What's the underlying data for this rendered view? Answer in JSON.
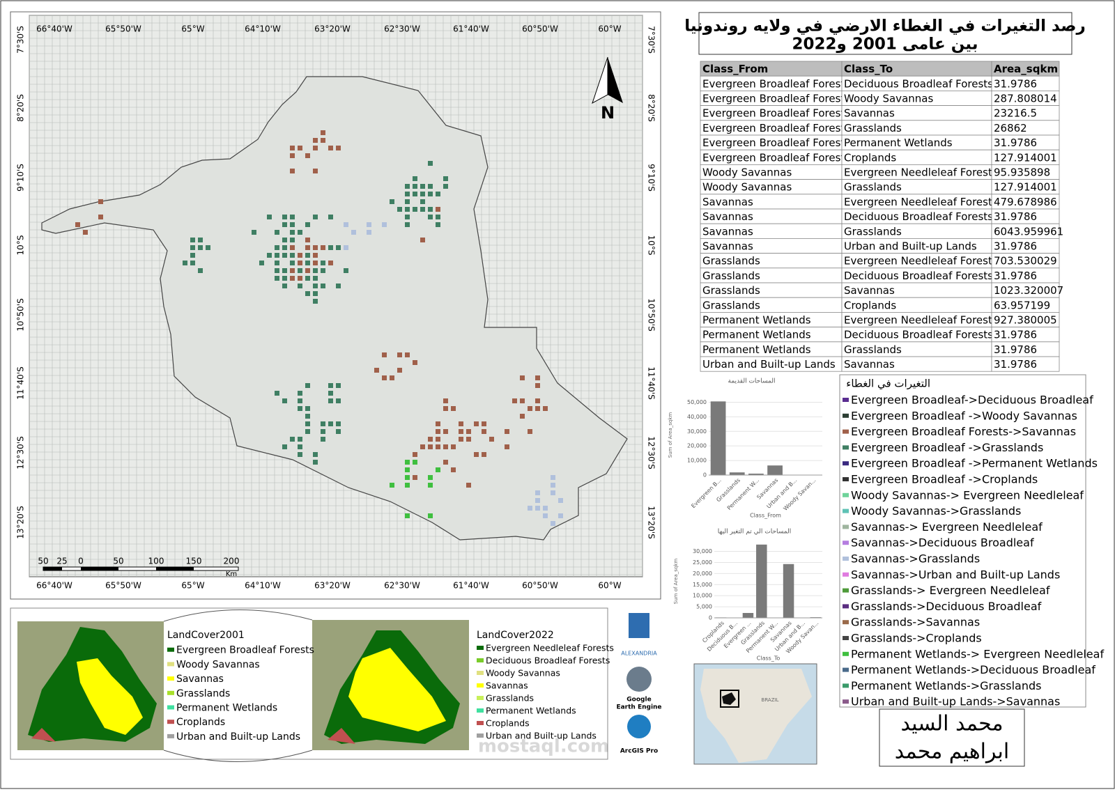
{
  "header": {
    "title": [
      "رصد التغيرات في الغطاء الارضي في ولايه روندونيا",
      "بين عامى 2001 و2022"
    ]
  },
  "map": {
    "lon_labels": [
      "66°40'W",
      "65°50'W",
      "65°W",
      "64°10'W",
      "63°20'W",
      "62°30'W",
      "61°40'W",
      "60°50'W",
      "60°W"
    ],
    "lat_labels": [
      "7°30'S",
      "8°20'S",
      "9°10'S",
      "10°S",
      "10°50'S",
      "11°40'S",
      "12°30'S",
      "13°20'S"
    ],
    "scale_labels": [
      "50",
      "25",
      "0",
      "50",
      "100",
      "150",
      "200"
    ],
    "scale_unit": "Km",
    "north": "N"
  },
  "table": {
    "columns": [
      "Class_From",
      "Class_To",
      "Area_sqkm"
    ],
    "rows": [
      [
        "Evergreen Broadleaf Forests",
        "Deciduous Broadleaf Forests",
        "31.9786"
      ],
      [
        "Evergreen Broadleaf Forests",
        "Woody Savannas",
        "287.808014"
      ],
      [
        "Evergreen Broadleaf Forests",
        "Savannas",
        "23216.5"
      ],
      [
        "Evergreen Broadleaf Forests",
        "Grasslands",
        "26862"
      ],
      [
        "Evergreen Broadleaf Forests",
        "Permanent Wetlands",
        "31.9786"
      ],
      [
        "Evergreen Broadleaf Forests",
        "Croplands",
        "127.914001"
      ],
      [
        "Woody Savannas",
        " Evergreen Needleleaf Forests",
        "95.935898"
      ],
      [
        "Woody Savannas",
        "Grasslands",
        "127.914001"
      ],
      [
        "Savannas",
        " Evergreen Needleleaf Forests",
        "479.678986"
      ],
      [
        "Savannas",
        "Deciduous Broadleaf Forests",
        "31.9786"
      ],
      [
        "Savannas",
        "Grasslands",
        "6043.959961"
      ],
      [
        "Savannas",
        "Urban and Built-up Lands",
        "31.9786"
      ],
      [
        "Grasslands",
        " Evergreen Needleleaf Forests",
        "703.530029"
      ],
      [
        "Grasslands",
        "Deciduous Broadleaf Forests",
        "31.9786"
      ],
      [
        "Grasslands",
        "Savannas",
        "1023.320007"
      ],
      [
        "Grasslands",
        "Croplands",
        "63.957199"
      ],
      [
        "Permanent Wetlands",
        " Evergreen Needleleaf Forests",
        "927.380005"
      ],
      [
        "Permanent Wetlands",
        "Deciduous Broadleaf Forests",
        "31.9786"
      ],
      [
        "Permanent Wetlands",
        "Grasslands",
        "31.9786"
      ],
      [
        "Urban and Built-up Lands",
        "Savannas",
        "31.9786"
      ]
    ]
  },
  "charts": [
    {
      "type": "bar",
      "title": "المساحات القديمة",
      "y_label": "Sum of Area_sqkm",
      "x_label": "Class_From",
      "color": "#7a7a7a",
      "categories": [
        "Evergreen B...",
        "Grasslands",
        "Permanent W...",
        "Savannas",
        "Urban and B...",
        "Woody Savan..."
      ],
      "values": [
        50558,
        1823,
        991,
        6588,
        32,
        224
      ],
      "ylim": [
        0,
        55000
      ],
      "yticks": [
        0,
        {
          "value": 10000,
          "label": "10,000"
        },
        {
          "value": 20000,
          "label": "20,000"
        },
        {
          "value": 30000,
          "label": "30,000"
        },
        {
          "value": 40000,
          "label": "40,000"
        },
        {
          "value": 50000,
          "label": "50,000"
        }
      ]
    },
    {
      "type": "bar",
      "title": "المساحات الي تم التغير اليها",
      "y_label": "Sum of Area_sqkm",
      "x_label": "Class_To",
      "color": "#7a7a7a",
      "categories": [
        "Croplands",
        "Deciduous B...",
        "Evergreen ...",
        "Grasslands",
        "Permanent W...",
        "Savannas",
        "Urban and B...",
        "Woody Savan..."
      ],
      "values": [
        192,
        128,
        2207,
        33066,
        32,
        24272,
        32,
        288
      ],
      "ylim": [
        0,
        33000
      ],
      "yticks": [
        0,
        {
          "value": 5000,
          "label": "5,000"
        },
        {
          "value": 10000,
          "label": "10,000"
        },
        {
          "value": 15000,
          "label": "15,000"
        },
        {
          "value": 20000,
          "label": "20,000"
        },
        {
          "value": 25000,
          "label": "25,000"
        },
        {
          "value": 30000,
          "label": "30,000"
        }
      ]
    }
  ],
  "change_legend": {
    "title": "التغيرات في الغطاء",
    "items": [
      {
        "label": "Evergreen Broadleaf->Deciduous Broadleaf",
        "color": "#5a2d91"
      },
      {
        "label": "Evergreen Broadleaf ->Woody Savannas",
        "color": "#2c3e33"
      },
      {
        "label": "Evergreen Broadleaf Forests->Savannas",
        "color": "#a0604a"
      },
      {
        "label": "Evergreen Broadleaf ->Grasslands",
        "color": "#3f7f63"
      },
      {
        "label": "Evergreen Broadleaf ->Permanent Wetlands",
        "color": "#3a2a80"
      },
      {
        "label": "Evergreen Broadleaf ->Croplands",
        "color": "#333333"
      },
      {
        "label": "Woody Savannas-> Evergreen Needleleaf",
        "color": "#6fd39a"
      },
      {
        "label": "Woody Savannas->Grasslands",
        "color": "#5fc2b5"
      },
      {
        "label": "Savannas-> Evergreen Needleleaf",
        "color": "#9fb59f"
      },
      {
        "label": "Savannas->Deciduous Broadleaf",
        "color": "#b57ee0"
      },
      {
        "label": "Savannas->Grasslands",
        "color": "#b0c0dc"
      },
      {
        "label": "Savannas->Urban and Built-up Lands",
        "color": "#e07be0"
      },
      {
        "label": "Grasslands-> Evergreen Needleleaf",
        "color": "#4e9a3a"
      },
      {
        "label": "Grasslands->Deciduous Broadleaf",
        "color": "#5a2d80"
      },
      {
        "label": "Grasslands->Savannas",
        "color": "#9a6a4a"
      },
      {
        "label": "Grasslands->Croplands",
        "color": "#444444"
      },
      {
        "label": "Permanent Wetlands-> Evergreen Needleleaf",
        "color": "#3fbf3f"
      },
      {
        "label": "Permanent Wetlands->Deciduous Broadleaf",
        "color": "#4a6a8a"
      },
      {
        "label": "Permanent Wetlands->Grasslands",
        "color": "#3a9a6a"
      },
      {
        "label": "Urban and Built-up Lands->Savannas",
        "color": "#8a5a8a"
      }
    ]
  },
  "inset_2001": {
    "title": "LandCover2001",
    "items": [
      {
        "label": "Evergreen Broadleaf Forests",
        "color": "#0a6b0a"
      },
      {
        "label": "Woody Savannas",
        "color": "#e0e080"
      },
      {
        "label": "Savannas",
        "color": "#ffff00"
      },
      {
        "label": "Grasslands",
        "color": "#a8e02a"
      },
      {
        "label": "Permanent Wetlands",
        "color": "#40e0a0"
      },
      {
        "label": "Croplands",
        "color": "#c05050"
      },
      {
        "label": "Urban and Built-up Lands",
        "color": "#a0a0a0"
      }
    ]
  },
  "inset_2022": {
    "title": "LandCover2022",
    "items": [
      {
        "label": "Evergreen Needleleaf Forests",
        "color": "#0a6b0a"
      },
      {
        "label": "Deciduous Broadleaf Forests",
        "color": "#7acc2a"
      },
      {
        "label": "Woody Savannas",
        "color": "#e0e080"
      },
      {
        "label": "Savannas",
        "color": "#ffff00"
      },
      {
        "label": "Grasslands",
        "color": "#c8f05a"
      },
      {
        "label": "Permanent Wetlands",
        "color": "#40e0a0"
      },
      {
        "label": "Croplands",
        "color": "#c05050"
      },
      {
        "label": "Urban and Built-up Lands",
        "color": "#a0a0a0"
      }
    ]
  },
  "logos": {
    "university": "ALEXANDRIA",
    "gee": [
      "Google",
      "Earth Engine"
    ],
    "arcgis": "ArcGIS Pro"
  },
  "minimap": {
    "label": "BRAZIL"
  },
  "author": [
    "محمد السيد",
    "ابراهيم محمد"
  ],
  "watermark": "mostaql.com"
}
